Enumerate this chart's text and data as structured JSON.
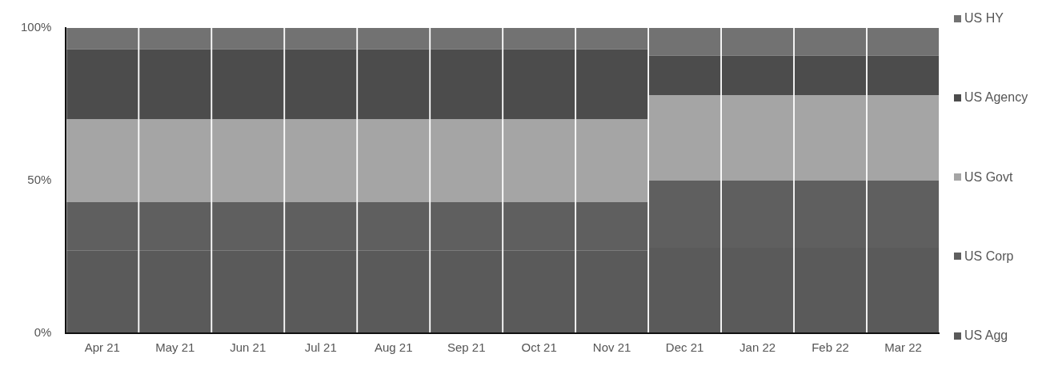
{
  "chart_data": {
    "type": "bar",
    "stacked": true,
    "categories": [
      "Apr 21",
      "May 21",
      "Jun 21",
      "Jul 21",
      "Aug 21",
      "Sep 21",
      "Oct 21",
      "Nov 21",
      "Dec 21",
      "Jan 22",
      "Feb 22",
      "Mar 22"
    ],
    "series": [
      {
        "name": "US Agg",
        "color": "#5a5a5a",
        "values": [
          27,
          27,
          27,
          27,
          27,
          27,
          27,
          27,
          28,
          28,
          28,
          28
        ]
      },
      {
        "name": "US Corp",
        "color": "#5f5f5f",
        "values": [
          16,
          16,
          16,
          16,
          16,
          16,
          16,
          16,
          22,
          22,
          22,
          22
        ]
      },
      {
        "name": "US Govt",
        "color": "#a5a5a5",
        "values": [
          27,
          27,
          27,
          27,
          27,
          27,
          27,
          27,
          28,
          28,
          28,
          28
        ]
      },
      {
        "name": "US Agency",
        "color": "#4c4c4c",
        "values": [
          23,
          23,
          23,
          23,
          23,
          23,
          23,
          23,
          13,
          13,
          13,
          13
        ]
      },
      {
        "name": "US HY",
        "color": "#727272",
        "values": [
          7,
          7,
          7,
          7,
          7,
          7,
          7,
          7,
          9,
          9,
          9,
          9
        ]
      }
    ],
    "ylim": [
      0,
      100
    ],
    "yticks": [
      {
        "value": 0,
        "label": "0%"
      },
      {
        "value": 50,
        "label": "50%"
      },
      {
        "value": 100,
        "label": "100%"
      }
    ],
    "grid": false,
    "legend": "right"
  }
}
